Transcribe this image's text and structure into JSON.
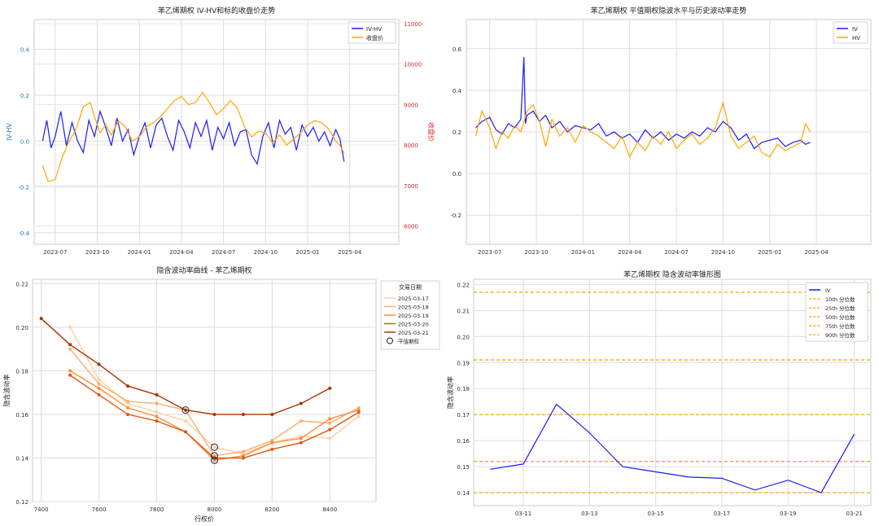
{
  "chart_data": [
    {
      "type": "line",
      "title": "苯乙烯期权 IV-HV和标的收盘价走势",
      "xlabel": "",
      "ylabel": "IV-HV",
      "y2label": "收盘价",
      "ylim": [
        -0.45,
        0.53
      ],
      "y2lim": [
        5550,
        11100
      ],
      "yticks": [
        -0.4,
        -0.2,
        0.0,
        0.2,
        0.4
      ],
      "y2ticks": [
        6000,
        7000,
        8000,
        9000,
        10000,
        11000
      ],
      "xlim": [
        -1.5,
        24.5
      ],
      "xticks": [
        {
          "v": 0,
          "label": "2023-07"
        },
        {
          "v": 3,
          "label": "2023-10"
        },
        {
          "v": 6,
          "label": "2024-01"
        },
        {
          "v": 9,
          "label": "2024-04"
        },
        {
          "v": 12,
          "label": "2024-07"
        },
        {
          "v": 15,
          "label": "2024-10"
        },
        {
          "v": 18,
          "label": "2025-01"
        },
        {
          "v": 21,
          "label": "2025-04"
        }
      ],
      "legend": "top-right",
      "series": [
        {
          "name": "IV-HV",
          "axis": "left",
          "color": "#1a1aff",
          "x": [
            -0.9,
            -0.6,
            -0.3,
            0.0,
            0.4,
            0.8,
            1.2,
            1.6,
            2.0,
            2.4,
            2.8,
            3.2,
            3.6,
            4.0,
            4.4,
            4.8,
            5.2,
            5.6,
            6.0,
            6.4,
            6.8,
            7.2,
            7.6,
            8.0,
            8.4,
            8.8,
            9.2,
            9.6,
            10.0,
            10.4,
            10.8,
            11.2,
            11.6,
            12.0,
            12.4,
            12.8,
            13.2,
            13.6,
            14.0,
            14.4,
            14.8,
            15.2,
            15.6,
            16.0,
            16.4,
            16.8,
            17.2,
            17.6,
            18.0,
            18.4,
            18.8,
            19.2,
            19.6,
            20.0,
            20.3,
            20.6
          ],
          "y": [
            0.0,
            0.09,
            -0.03,
            0.02,
            0.13,
            -0.02,
            0.08,
            0.0,
            -0.05,
            0.09,
            0.02,
            0.13,
            0.06,
            -0.02,
            0.1,
            0.0,
            0.05,
            -0.06,
            0.02,
            0.08,
            -0.03,
            0.07,
            0.1,
            0.02,
            -0.04,
            0.09,
            0.04,
            -0.03,
            0.08,
            0.02,
            0.09,
            -0.04,
            0.06,
            0.01,
            0.08,
            -0.02,
            0.04,
            0.05,
            -0.06,
            -0.1,
            0.02,
            0.08,
            -0.03,
            0.09,
            0.03,
            0.06,
            -0.04,
            0.07,
            0.02,
            0.06,
            0.0,
            0.04,
            -0.02,
            0.05,
            0.01,
            -0.09
          ]
        },
        {
          "name": "收盘价",
          "axis": "right",
          "color": "#ffa500",
          "x": [
            -0.9,
            -0.5,
            0.0,
            0.5,
            1.0,
            1.5,
            2.0,
            2.5,
            2.8,
            3.2,
            3.6,
            4.0,
            4.5,
            5.0,
            5.5,
            6.0,
            6.5,
            7.0,
            7.5,
            8.0,
            8.5,
            9.0,
            9.5,
            10.0,
            10.5,
            11.0,
            11.5,
            12.0,
            12.5,
            13.0,
            13.5,
            14.0,
            14.5,
            15.0,
            15.5,
            16.0,
            16.5,
            17.0,
            17.5,
            18.0,
            18.5,
            19.0,
            19.5,
            20.0,
            20.3,
            20.6
          ],
          "y": [
            7500,
            7100,
            7150,
            7700,
            8100,
            8400,
            8950,
            9050,
            8700,
            8300,
            8500,
            8250,
            8600,
            8450,
            8100,
            8200,
            8450,
            8550,
            8700,
            8900,
            9100,
            9200,
            9000,
            9050,
            9300,
            9050,
            8750,
            8900,
            9100,
            8900,
            8450,
            8200,
            8350,
            8300,
            8050,
            8250,
            8000,
            8150,
            8300,
            8500,
            8600,
            8550,
            8400,
            8100,
            8000,
            7800
          ]
        }
      ]
    },
    {
      "type": "line",
      "title": "苯乙烯期权 平值期权隐波水平与历史波动率走势",
      "xlabel": "",
      "ylabel": "",
      "ylim": [
        -0.34,
        0.74
      ],
      "yticks": [
        -0.2,
        0.0,
        0.2,
        0.4,
        0.6
      ],
      "xlim": [
        -1.5,
        24.5
      ],
      "xticks": [
        {
          "v": 0,
          "label": "2023-07"
        },
        {
          "v": 3,
          "label": "2023-10"
        },
        {
          "v": 6,
          "label": "2024-01"
        },
        {
          "v": 9,
          "label": "2024-04"
        },
        {
          "v": 12,
          "label": "2024-07"
        },
        {
          "v": 15,
          "label": "2024-10"
        },
        {
          "v": 18,
          "label": "2025-01"
        },
        {
          "v": 21,
          "label": "2025-04"
        }
      ],
      "legend": "top-right",
      "series": [
        {
          "name": "IV",
          "color": "#1a1aff",
          "x": [
            -0.9,
            -0.5,
            0.0,
            0.4,
            0.8,
            1.2,
            1.6,
            2.0,
            2.2,
            2.3,
            2.4,
            2.8,
            3.2,
            3.6,
            4.0,
            4.5,
            5.0,
            5.5,
            6.0,
            6.5,
            7.0,
            7.5,
            8.0,
            8.5,
            9.0,
            9.5,
            10.0,
            10.5,
            11.0,
            11.5,
            12.0,
            12.5,
            13.0,
            13.5,
            14.0,
            14.5,
            15.0,
            15.5,
            16.0,
            16.5,
            17.0,
            17.5,
            18.0,
            18.5,
            19.0,
            19.5,
            20.0,
            20.3,
            20.6
          ],
          "y": [
            0.22,
            0.25,
            0.27,
            0.21,
            0.19,
            0.24,
            0.22,
            0.26,
            0.56,
            0.24,
            0.28,
            0.3,
            0.25,
            0.28,
            0.22,
            0.25,
            0.2,
            0.23,
            0.22,
            0.21,
            0.24,
            0.18,
            0.2,
            0.17,
            0.19,
            0.15,
            0.21,
            0.17,
            0.2,
            0.16,
            0.19,
            0.17,
            0.2,
            0.18,
            0.22,
            0.2,
            0.25,
            0.22,
            0.16,
            0.19,
            0.12,
            0.15,
            0.16,
            0.17,
            0.13,
            0.15,
            0.16,
            0.14,
            0.15
          ]
        },
        {
          "name": "HV",
          "color": "#ffa500",
          "x": [
            -0.9,
            -0.5,
            0.0,
            0.4,
            0.8,
            1.2,
            1.6,
            2.0,
            2.4,
            2.8,
            3.2,
            3.6,
            4.0,
            4.5,
            5.0,
            5.5,
            6.0,
            6.5,
            7.0,
            7.5,
            8.0,
            8.5,
            9.0,
            9.5,
            10.0,
            10.5,
            11.0,
            11.5,
            12.0,
            12.5,
            13.0,
            13.5,
            14.0,
            14.5,
            15.0,
            15.5,
            16.0,
            16.5,
            17.0,
            17.5,
            18.0,
            18.5,
            19.0,
            19.5,
            20.0,
            20.3,
            20.6
          ],
          "y": [
            0.18,
            0.3,
            0.22,
            0.12,
            0.2,
            0.17,
            0.23,
            0.2,
            0.3,
            0.33,
            0.25,
            0.13,
            0.26,
            0.18,
            0.22,
            0.15,
            0.23,
            0.2,
            0.18,
            0.15,
            0.12,
            0.18,
            0.08,
            0.15,
            0.11,
            0.18,
            0.14,
            0.2,
            0.12,
            0.16,
            0.19,
            0.14,
            0.17,
            0.22,
            0.34,
            0.18,
            0.12,
            0.15,
            0.18,
            0.1,
            0.08,
            0.14,
            0.11,
            0.13,
            0.15,
            0.24,
            0.2
          ]
        }
      ]
    },
    {
      "type": "line",
      "title": "隐含波动率曲线 - 苯乙烯期权",
      "xlabel": "行权价",
      "ylabel": "隐含波动率",
      "xlim": [
        7370,
        8560
      ],
      "ylim": [
        0.12,
        0.222
      ],
      "xticks": [
        7400,
        7600,
        7800,
        8000,
        8200,
        8400
      ],
      "yticks": [
        0.12,
        0.14,
        0.16,
        0.18,
        0.2,
        0.22
      ],
      "legend_title": "交易日期",
      "legend": "top-right",
      "atm_label": "平值期权",
      "series": [
        {
          "name": "2025-03-17",
          "color": "#fdd0a2",
          "x": [
            7500,
            7600,
            7700,
            7800,
            7900,
            8000,
            8100,
            8200,
            8300,
            8400,
            8500
          ],
          "y": [
            0.2,
            0.176,
            0.165,
            0.161,
            0.157,
            0.145,
            0.142,
            0.147,
            0.15,
            0.149,
            0.159
          ]
        },
        {
          "name": "2025-03-18",
          "color": "#fdae6b",
          "x": [
            7500,
            7600,
            7700,
            7800,
            7900,
            8000,
            8100,
            8200,
            8300,
            8400,
            8500
          ],
          "y": [
            0.19,
            0.174,
            0.166,
            0.165,
            0.162,
            0.141,
            0.143,
            0.148,
            0.157,
            0.156,
            0.163
          ]
        },
        {
          "name": "2025-03-19",
          "color": "#fd8d3c",
          "x": [
            7500,
            7600,
            7700,
            7800,
            7900,
            8000,
            8100,
            8200,
            8300,
            8400,
            8500
          ],
          "y": [
            0.18,
            0.172,
            0.163,
            0.159,
            0.152,
            0.139,
            0.141,
            0.147,
            0.149,
            0.158,
            0.162
          ]
        },
        {
          "name": "2025-03-20",
          "color": "#e6550d",
          "x": [
            7500,
            7600,
            7700,
            7800,
            7900,
            8000,
            8100,
            8200,
            8300,
            8400,
            8500
          ],
          "y": [
            0.178,
            0.169,
            0.16,
            0.157,
            0.152,
            0.14,
            0.14,
            0.144,
            0.147,
            0.153,
            0.161
          ]
        },
        {
          "name": "2025-03-21",
          "color": "#a63603",
          "x": [
            7400,
            7500,
            7600,
            7700,
            7800,
            7900,
            8000,
            8100,
            8200,
            8300,
            8400
          ],
          "y": [
            0.204,
            0.192,
            0.183,
            0.173,
            0.169,
            0.162,
            0.16,
            0.16,
            0.16,
            0.165,
            0.172
          ]
        }
      ],
      "atm_points": [
        {
          "x": 7900,
          "y": 0.162
        },
        {
          "x": 8000,
          "y": 0.145
        },
        {
          "x": 8000,
          "y": 0.141
        },
        {
          "x": 8000,
          "y": 0.139
        }
      ]
    },
    {
      "type": "line",
      "title": "苯乙烯期权 隐含波动率锥形图",
      "xlabel": "",
      "ylabel": "隐含波动率",
      "xlim": [
        -0.5,
        11.5
      ],
      "ylim": [
        0.135,
        0.222
      ],
      "yticks": [
        0.14,
        0.15,
        0.16,
        0.17,
        0.18,
        0.19,
        0.2,
        0.21,
        0.22
      ],
      "xticks": [
        {
          "v": 1,
          "label": "03-11"
        },
        {
          "v": 3,
          "label": "03-13"
        },
        {
          "v": 5,
          "label": "03-15"
        },
        {
          "v": 7,
          "label": "03-17"
        },
        {
          "v": 9,
          "label": "03-19"
        },
        {
          "v": 11,
          "label": "03-21"
        }
      ],
      "legend": "top-right",
      "series": [
        {
          "name": "IV",
          "color": "#1a1aff",
          "x": [
            0,
            1,
            2,
            3,
            4,
            5,
            6,
            7,
            8,
            9,
            10,
            11
          ],
          "y": [
            0.149,
            0.151,
            0.174,
            0.163,
            0.15,
            0.148,
            0.146,
            0.1455,
            0.141,
            0.1448,
            0.14,
            0.1625
          ]
        }
      ],
      "percentiles": [
        {
          "name": "10th 分位数",
          "value": 0.14,
          "color": "#ffa500"
        },
        {
          "name": "25th 分位数",
          "value": 0.152,
          "color": "#ffa500"
        },
        {
          "name": "50th 分位数",
          "value": 0.17,
          "color": "#ffa500"
        },
        {
          "name": "75th 分位数",
          "value": 0.191,
          "color": "#ffa500"
        },
        {
          "name": "90th 分位数",
          "value": 0.217,
          "color": "#ffa500"
        }
      ]
    }
  ]
}
